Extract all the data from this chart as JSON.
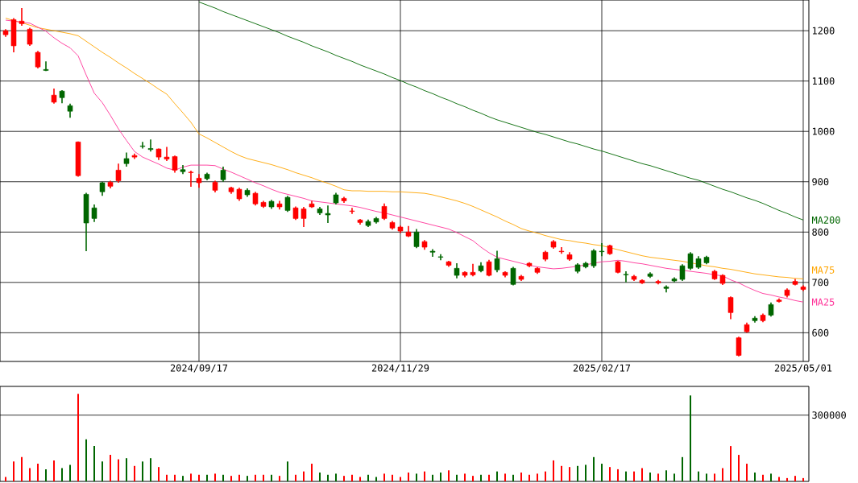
{
  "chart_data": [
    {
      "type": "candlestick",
      "categories": [
        null,
        null,
        null,
        null,
        null,
        null,
        null,
        null,
        null,
        null,
        null,
        null,
        null,
        null,
        null,
        null,
        null,
        null,
        null,
        null,
        null,
        null,
        null,
        null,
        "2024/09/17",
        null,
        null,
        null,
        null,
        null,
        null,
        null,
        null,
        null,
        null,
        null,
        null,
        null,
        null,
        null,
        null,
        null,
        null,
        null,
        null,
        null,
        null,
        null,
        null,
        "2024/11/29",
        null,
        null,
        null,
        null,
        null,
        null,
        null,
        null,
        null,
        null,
        null,
        null,
        null,
        null,
        null,
        null,
        null,
        null,
        null,
        null,
        null,
        null,
        null,
        null,
        "2025/02/17",
        null,
        null,
        null,
        null,
        null,
        null,
        null,
        null,
        null,
        null,
        null,
        null,
        null,
        null,
        null,
        null,
        null,
        null,
        null,
        null,
        null,
        null,
        null,
        null,
        "2025/05/01"
      ],
      "ohlc": [
        [
          1200,
          1203,
          1188,
          1192
        ],
        [
          1222,
          1225,
          1157,
          1170
        ],
        [
          1219,
          1245,
          1210,
          1214
        ],
        [
          1203,
          1206,
          1170,
          1173
        ],
        [
          1157,
          1160,
          1125,
          1128
        ],
        [
          1121,
          1139,
          1120,
          1123
        ],
        [
          1072,
          1085,
          1055,
          1058
        ],
        [
          1067,
          1082,
          1056,
          1080
        ],
        [
          1040,
          1055,
          1027,
          1051
        ],
        [
          979,
          980,
          910,
          912
        ],
        [
          818,
          878,
          762,
          875
        ],
        [
          827,
          855,
          820,
          848
        ],
        [
          880,
          900,
          872,
          898
        ],
        [
          899,
          902,
          887,
          891
        ],
        [
          923,
          936,
          898,
          902
        ],
        [
          936,
          958,
          930,
          946
        ],
        [
          952,
          956,
          945,
          949
        ],
        [
          970,
          979,
          966,
          971
        ],
        [
          964,
          984,
          960,
          966
        ],
        [
          965,
          966,
          943,
          949
        ],
        [
          949,
          969,
          941,
          945
        ],
        [
          950,
          952,
          918,
          923
        ],
        [
          920,
          933,
          915,
          924
        ],
        [
          919,
          922,
          890,
          918
        ],
        [
          907,
          915,
          888,
          898
        ],
        [
          906,
          918,
          903,
          915
        ],
        [
          899,
          902,
          879,
          883
        ],
        [
          904,
          930,
          900,
          923
        ],
        [
          888,
          890,
          876,
          880
        ],
        [
          885,
          888,
          862,
          866
        ],
        [
          874,
          887,
          870,
          883
        ],
        [
          877,
          880,
          853,
          856
        ],
        [
          859,
          862,
          848,
          851
        ],
        [
          850,
          864,
          846,
          861
        ],
        [
          856,
          862,
          845,
          850
        ],
        [
          843,
          872,
          840,
          869
        ],
        [
          848,
          851,
          824,
          827
        ],
        [
          846,
          850,
          810,
          827
        ],
        [
          856,
          862,
          848,
          850
        ],
        [
          838,
          850,
          834,
          846
        ],
        [
          834,
          853,
          818,
          837
        ],
        [
          858,
          878,
          855,
          874
        ],
        [
          867,
          870,
          858,
          862
        ],
        [
          842,
          848,
          836,
          841
        ],
        [
          824,
          826,
          815,
          819
        ],
        [
          813,
          825,
          810,
          821
        ],
        [
          820,
          830,
          817,
          827
        ],
        [
          851,
          857,
          824,
          827
        ],
        [
          819,
          822,
          805,
          808
        ],
        [
          810,
          813,
          798,
          802
        ],
        [
          800,
          812,
          790,
          792
        ],
        [
          771,
          806,
          768,
          800
        ],
        [
          781,
          784,
          765,
          770
        ],
        [
          760,
          766,
          751,
          762
        ],
        [
          750,
          756,
          744,
          751
        ],
        [
          741,
          743,
          731,
          734
        ],
        [
          714,
          738,
          708,
          728
        ],
        [
          720,
          722,
          710,
          714
        ],
        [
          720,
          737,
          712,
          715
        ],
        [
          723,
          740,
          720,
          733
        ],
        [
          741,
          745,
          712,
          714
        ],
        [
          725,
          763,
          720,
          747
        ],
        [
          720,
          722,
          710,
          714
        ],
        [
          696,
          731,
          694,
          728
        ],
        [
          712,
          715,
          703,
          706
        ],
        [
          738,
          740,
          730,
          733
        ],
        [
          728,
          730,
          717,
          720
        ],
        [
          760,
          763,
          742,
          746
        ],
        [
          781,
          784,
          767,
          770
        ],
        [
          762,
          770,
          757,
          761
        ],
        [
          755,
          760,
          743,
          746
        ],
        [
          722,
          738,
          718,
          735
        ],
        [
          731,
          741,
          728,
          738
        ],
        [
          733,
          766,
          729,
          763
        ],
        [
          761,
          778,
          752,
          762
        ],
        [
          773,
          775,
          755,
          757
        ],
        [
          741,
          743,
          718,
          720
        ],
        [
          715,
          722,
          700,
          716
        ],
        [
          712,
          715,
          703,
          706
        ],
        [
          704,
          706,
          697,
          699
        ],
        [
          712,
          720,
          709,
          717
        ],
        [
          702,
          705,
          696,
          699
        ],
        [
          688,
          694,
          680,
          691
        ],
        [
          703,
          710,
          700,
          707
        ],
        [
          706,
          736,
          703,
          733
        ],
        [
          728,
          760,
          725,
          757
        ],
        [
          730,
          752,
          727,
          747
        ],
        [
          739,
          753,
          736,
          750
        ],
        [
          722,
          725,
          705,
          707
        ],
        [
          714,
          716,
          695,
          698
        ],
        [
          670,
          672,
          627,
          640
        ],
        [
          590,
          592,
          553,
          555
        ],
        [
          616,
          620,
          600,
          602
        ],
        [
          624,
          633,
          620,
          629
        ],
        [
          635,
          638,
          621,
          624
        ],
        [
          635,
          660,
          632,
          656
        ],
        [
          665,
          668,
          660,
          662
        ],
        [
          685,
          688,
          670,
          674
        ],
        [
          702,
          707,
          694,
          696
        ],
        [
          691,
          694,
          683,
          686
        ]
      ],
      "colors": [
        "#ff0000",
        "#ff0000",
        "#ff0000",
        "#ff0000",
        "#ff0000",
        "#006600",
        "#ff0000",
        "#006600",
        "#006600",
        "#ff0000",
        "#006600",
        "#006600",
        "#006600",
        "#ff0000",
        "#ff0000",
        "#006600",
        "#ff0000",
        "#006600",
        "#006600",
        "#ff0000",
        "#ff0000",
        "#ff0000",
        "#006600",
        "#ff0000",
        "#ff0000",
        "#006600",
        "#ff0000",
        "#006600",
        "#ff0000",
        "#ff0000",
        "#006600",
        "#ff0000",
        "#ff0000",
        "#006600",
        "#ff0000",
        "#006600",
        "#ff0000",
        "#ff0000",
        "#ff0000",
        "#006600",
        "#006600",
        "#006600",
        "#ff0000",
        "#ff0000",
        "#ff0000",
        "#006600",
        "#006600",
        "#ff0000",
        "#ff0000",
        "#ff0000",
        "#ff0000",
        "#006600",
        "#ff0000",
        "#006600",
        "#006600",
        "#ff0000",
        "#006600",
        "#ff0000",
        "#ff0000",
        "#006600",
        "#ff0000",
        "#006600",
        "#ff0000",
        "#006600",
        "#ff0000",
        "#ff0000",
        "#ff0000",
        "#ff0000",
        "#ff0000",
        "#ff0000",
        "#ff0000",
        "#006600",
        "#006600",
        "#006600",
        "#006600",
        "#ff0000",
        "#ff0000",
        "#006600",
        "#ff0000",
        "#ff0000",
        "#006600",
        "#ff0000",
        "#006600",
        "#006600",
        "#006600",
        "#006600",
        "#006600",
        "#006600",
        "#ff0000",
        "#ff0000",
        "#ff0000",
        "#ff0000",
        "#ff0000",
        "#006600",
        "#ff0000",
        "#006600",
        "#ff0000",
        "#ff0000",
        "#ff0000",
        "#ff0000"
      ],
      "series": [
        {
          "name": "MA200",
          "type": "line",
          "color": "#006600",
          "values": [
            null,
            null,
            null,
            null,
            null,
            null,
            null,
            null,
            null,
            null,
            null,
            null,
            null,
            null,
            null,
            null,
            null,
            null,
            null,
            null,
            null,
            null,
            null,
            null,
            1257,
            1251,
            1245,
            1238,
            1232,
            1226,
            1220,
            1214,
            1208,
            1202,
            1196,
            1189,
            1183,
            1177,
            1170,
            1164,
            1158,
            1151,
            1145,
            1139,
            1132,
            1126,
            1120,
            1114,
            1107,
            1101,
            1094,
            1088,
            1081,
            1075,
            1068,
            1062,
            1055,
            1049,
            1042,
            1036,
            1029,
            1023,
            1018,
            1013,
            1008,
            1003,
            998,
            994,
            989,
            984,
            979,
            975,
            970,
            965,
            961,
            956,
            951,
            946,
            941,
            936,
            932,
            927,
            922,
            917,
            912,
            907,
            903,
            897,
            891,
            885,
            880,
            874,
            868,
            863,
            857,
            850,
            843,
            837,
            830,
            824
          ]
        },
        {
          "name": "MA75",
          "type": "line",
          "color": "#ffa500",
          "values": [
            1225,
            1220,
            1216,
            1211,
            1206,
            1203,
            1200,
            1197,
            1194,
            1190,
            1179,
            1168,
            1157,
            1147,
            1136,
            1126,
            1115,
            1105,
            1095,
            1084,
            1074,
            1055,
            1037,
            1018,
            995,
            987,
            978,
            969,
            960,
            952,
            946,
            942,
            938,
            934,
            929,
            924,
            918,
            913,
            908,
            902,
            897,
            891,
            884,
            882,
            882,
            881,
            881,
            881,
            880,
            880,
            879,
            878,
            877,
            874,
            870,
            866,
            862,
            857,
            851,
            844,
            837,
            830,
            822,
            815,
            807,
            802,
            798,
            793,
            789,
            785,
            783,
            780,
            778,
            775,
            773,
            769,
            765,
            761,
            757,
            753,
            750,
            748,
            746,
            744,
            742,
            739,
            736,
            733,
            731,
            728,
            726,
            723,
            720,
            717,
            715,
            713,
            711,
            710,
            708,
            707
          ]
        },
        {
          "name": "MA25",
          "type": "line",
          "color": "#ff3399",
          "values": [
            1221,
            1219,
            1217,
            1215,
            1207,
            1199,
            1186,
            1175,
            1166,
            1150,
            1112,
            1076,
            1057,
            1032,
            1005,
            982,
            960,
            949,
            942,
            935,
            927,
            923,
            929,
            933,
            933,
            933,
            932,
            925,
            919,
            912,
            905,
            898,
            892,
            885,
            879,
            875,
            871,
            867,
            862,
            860,
            858,
            856,
            854,
            852,
            849,
            845,
            841,
            838,
            834,
            830,
            826,
            822,
            818,
            814,
            810,
            806,
            799,
            791,
            783,
            770,
            759,
            750,
            746,
            742,
            738,
            734,
            731,
            729,
            727,
            728,
            730,
            732,
            735,
            738,
            741,
            742,
            744,
            742,
            739,
            737,
            734,
            731,
            728,
            726,
            724,
            722,
            720,
            718,
            715,
            713,
            705,
            699,
            691,
            684,
            678,
            675,
            671,
            668,
            664,
            661
          ]
        }
      ],
      "ylim": [
        543,
        1261
      ],
      "yticks": [
        600,
        700,
        800,
        900,
        1000,
        1100,
        1200
      ],
      "grid": true
    },
    {
      "type": "bar",
      "categories": [
        null,
        null,
        null,
        null,
        null,
        null,
        null,
        null,
        null,
        null,
        null,
        null,
        null,
        null,
        null,
        null,
        null,
        null,
        null,
        null,
        null,
        null,
        null,
        null,
        "2024/09/17",
        null,
        null,
        null,
        null,
        null,
        null,
        null,
        null,
        null,
        null,
        null,
        null,
        null,
        null,
        null,
        null,
        null,
        null,
        null,
        null,
        null,
        null,
        null,
        null,
        "2024/11/29",
        null,
        null,
        null,
        null,
        null,
        null,
        null,
        null,
        null,
        null,
        null,
        null,
        null,
        null,
        null,
        null,
        null,
        null,
        null,
        null,
        null,
        null,
        null,
        null,
        "2025/02/17",
        null,
        null,
        null,
        null,
        null,
        null,
        null,
        null,
        null,
        null,
        null,
        null,
        null,
        null,
        null,
        null,
        null,
        null,
        null,
        null,
        null,
        null,
        null,
        null,
        "2025/05/01"
      ],
      "values": [
        20000,
        90000,
        110000,
        60000,
        80000,
        55000,
        95000,
        60000,
        75000,
        396000,
        190000,
        160000,
        90000,
        120000,
        100000,
        105000,
        70000,
        90000,
        105000,
        65000,
        30000,
        30000,
        25000,
        35000,
        30000,
        30000,
        35000,
        30000,
        25000,
        30000,
        25000,
        30000,
        30000,
        30000,
        25000,
        90000,
        30000,
        45000,
        80000,
        40000,
        30000,
        35000,
        25000,
        30000,
        20000,
        30000,
        20000,
        35000,
        30000,
        20000,
        40000,
        35000,
        45000,
        30000,
        40000,
        50000,
        30000,
        35000,
        25000,
        30000,
        30000,
        45000,
        35000,
        30000,
        40000,
        30000,
        35000,
        45000,
        95000,
        70000,
        65000,
        70000,
        75000,
        110000,
        80000,
        65000,
        55000,
        45000,
        45000,
        60000,
        40000,
        35000,
        50000,
        35000,
        110000,
        389000,
        45000,
        35000,
        35000,
        60000,
        160000,
        120000,
        80000,
        40000,
        30000,
        35000,
        20000,
        15000,
        25000,
        15000
      ],
      "colors": [
        "#ff0000",
        "#ff0000",
        "#ff0000",
        "#ff0000",
        "#ff0000",
        "#006600",
        "#ff0000",
        "#006600",
        "#006600",
        "#ff0000",
        "#006600",
        "#006600",
        "#006600",
        "#ff0000",
        "#ff0000",
        "#006600",
        "#ff0000",
        "#006600",
        "#006600",
        "#ff0000",
        "#ff0000",
        "#ff0000",
        "#006600",
        "#ff0000",
        "#ff0000",
        "#006600",
        "#ff0000",
        "#006600",
        "#ff0000",
        "#ff0000",
        "#006600",
        "#ff0000",
        "#ff0000",
        "#006600",
        "#ff0000",
        "#006600",
        "#ff0000",
        "#ff0000",
        "#ff0000",
        "#006600",
        "#006600",
        "#006600",
        "#ff0000",
        "#ff0000",
        "#ff0000",
        "#006600",
        "#006600",
        "#ff0000",
        "#ff0000",
        "#ff0000",
        "#ff0000",
        "#006600",
        "#ff0000",
        "#006600",
        "#006600",
        "#ff0000",
        "#006600",
        "#ff0000",
        "#ff0000",
        "#006600",
        "#ff0000",
        "#006600",
        "#ff0000",
        "#006600",
        "#ff0000",
        "#ff0000",
        "#ff0000",
        "#ff0000",
        "#ff0000",
        "#ff0000",
        "#ff0000",
        "#006600",
        "#006600",
        "#006600",
        "#006600",
        "#ff0000",
        "#ff0000",
        "#006600",
        "#ff0000",
        "#ff0000",
        "#006600",
        "#ff0000",
        "#006600",
        "#006600",
        "#006600",
        "#006600",
        "#006600",
        "#006600",
        "#ff0000",
        "#ff0000",
        "#ff0000",
        "#ff0000",
        "#ff0000",
        "#006600",
        "#ff0000",
        "#006600",
        "#ff0000",
        "#ff0000",
        "#ff0000",
        "#ff0000"
      ],
      "ylim": [
        0,
        430000
      ],
      "yticks": [
        300000
      ],
      "grid": "y",
      "tick_labels": "y"
    }
  ]
}
